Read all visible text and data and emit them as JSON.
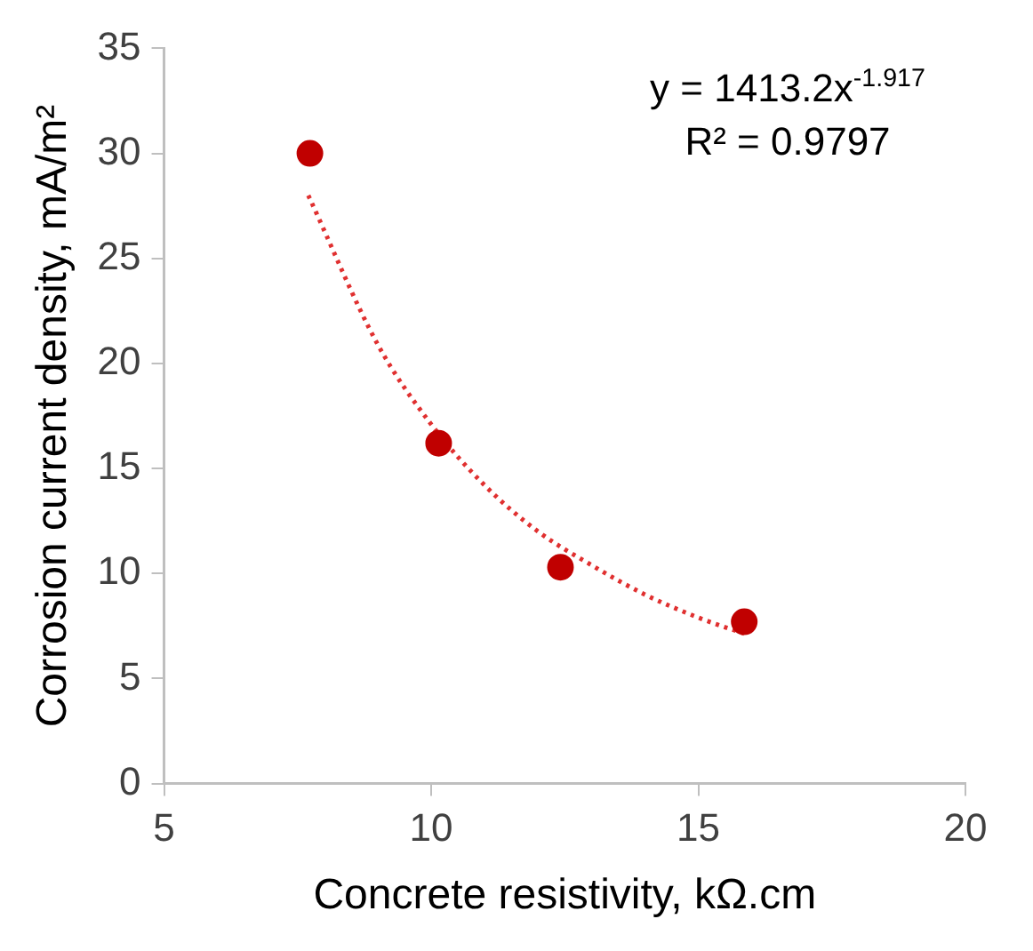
{
  "chart_data": {
    "type": "scatter",
    "xlabel": "Concrete resistivity, kΩ.cm",
    "ylabel": "Corrosion current density, mA/m²",
    "series": [
      {
        "type": "scatter",
        "color": "#c00000",
        "marker": "circle",
        "x": [
          7.73,
          10.14,
          12.42,
          15.86
        ],
        "values": [
          30,
          16.2,
          10.3,
          7.7
        ]
      },
      {
        "type": "line",
        "color": "#e03030",
        "line_style": "dotted",
        "marker": "none",
        "x": [
          7.7,
          9,
          10,
          11,
          12,
          13,
          14,
          15,
          15.9
        ],
        "values": [
          28,
          20.9,
          17.1,
          14.2,
          12,
          10.4,
          9,
          7.9,
          7.1
        ]
      }
    ],
    "xlim": [
      5,
      20
    ],
    "xticks": [
      5,
      10,
      15,
      20
    ],
    "ylim": [
      0,
      35
    ],
    "yticks": [
      0,
      5,
      10,
      15,
      20,
      25,
      30,
      35
    ],
    "annotations": [
      "y = 1413.2x$^{-1.917}$",
      "R² = 0.9797"
    ],
    "grid": false,
    "legend": false
  }
}
